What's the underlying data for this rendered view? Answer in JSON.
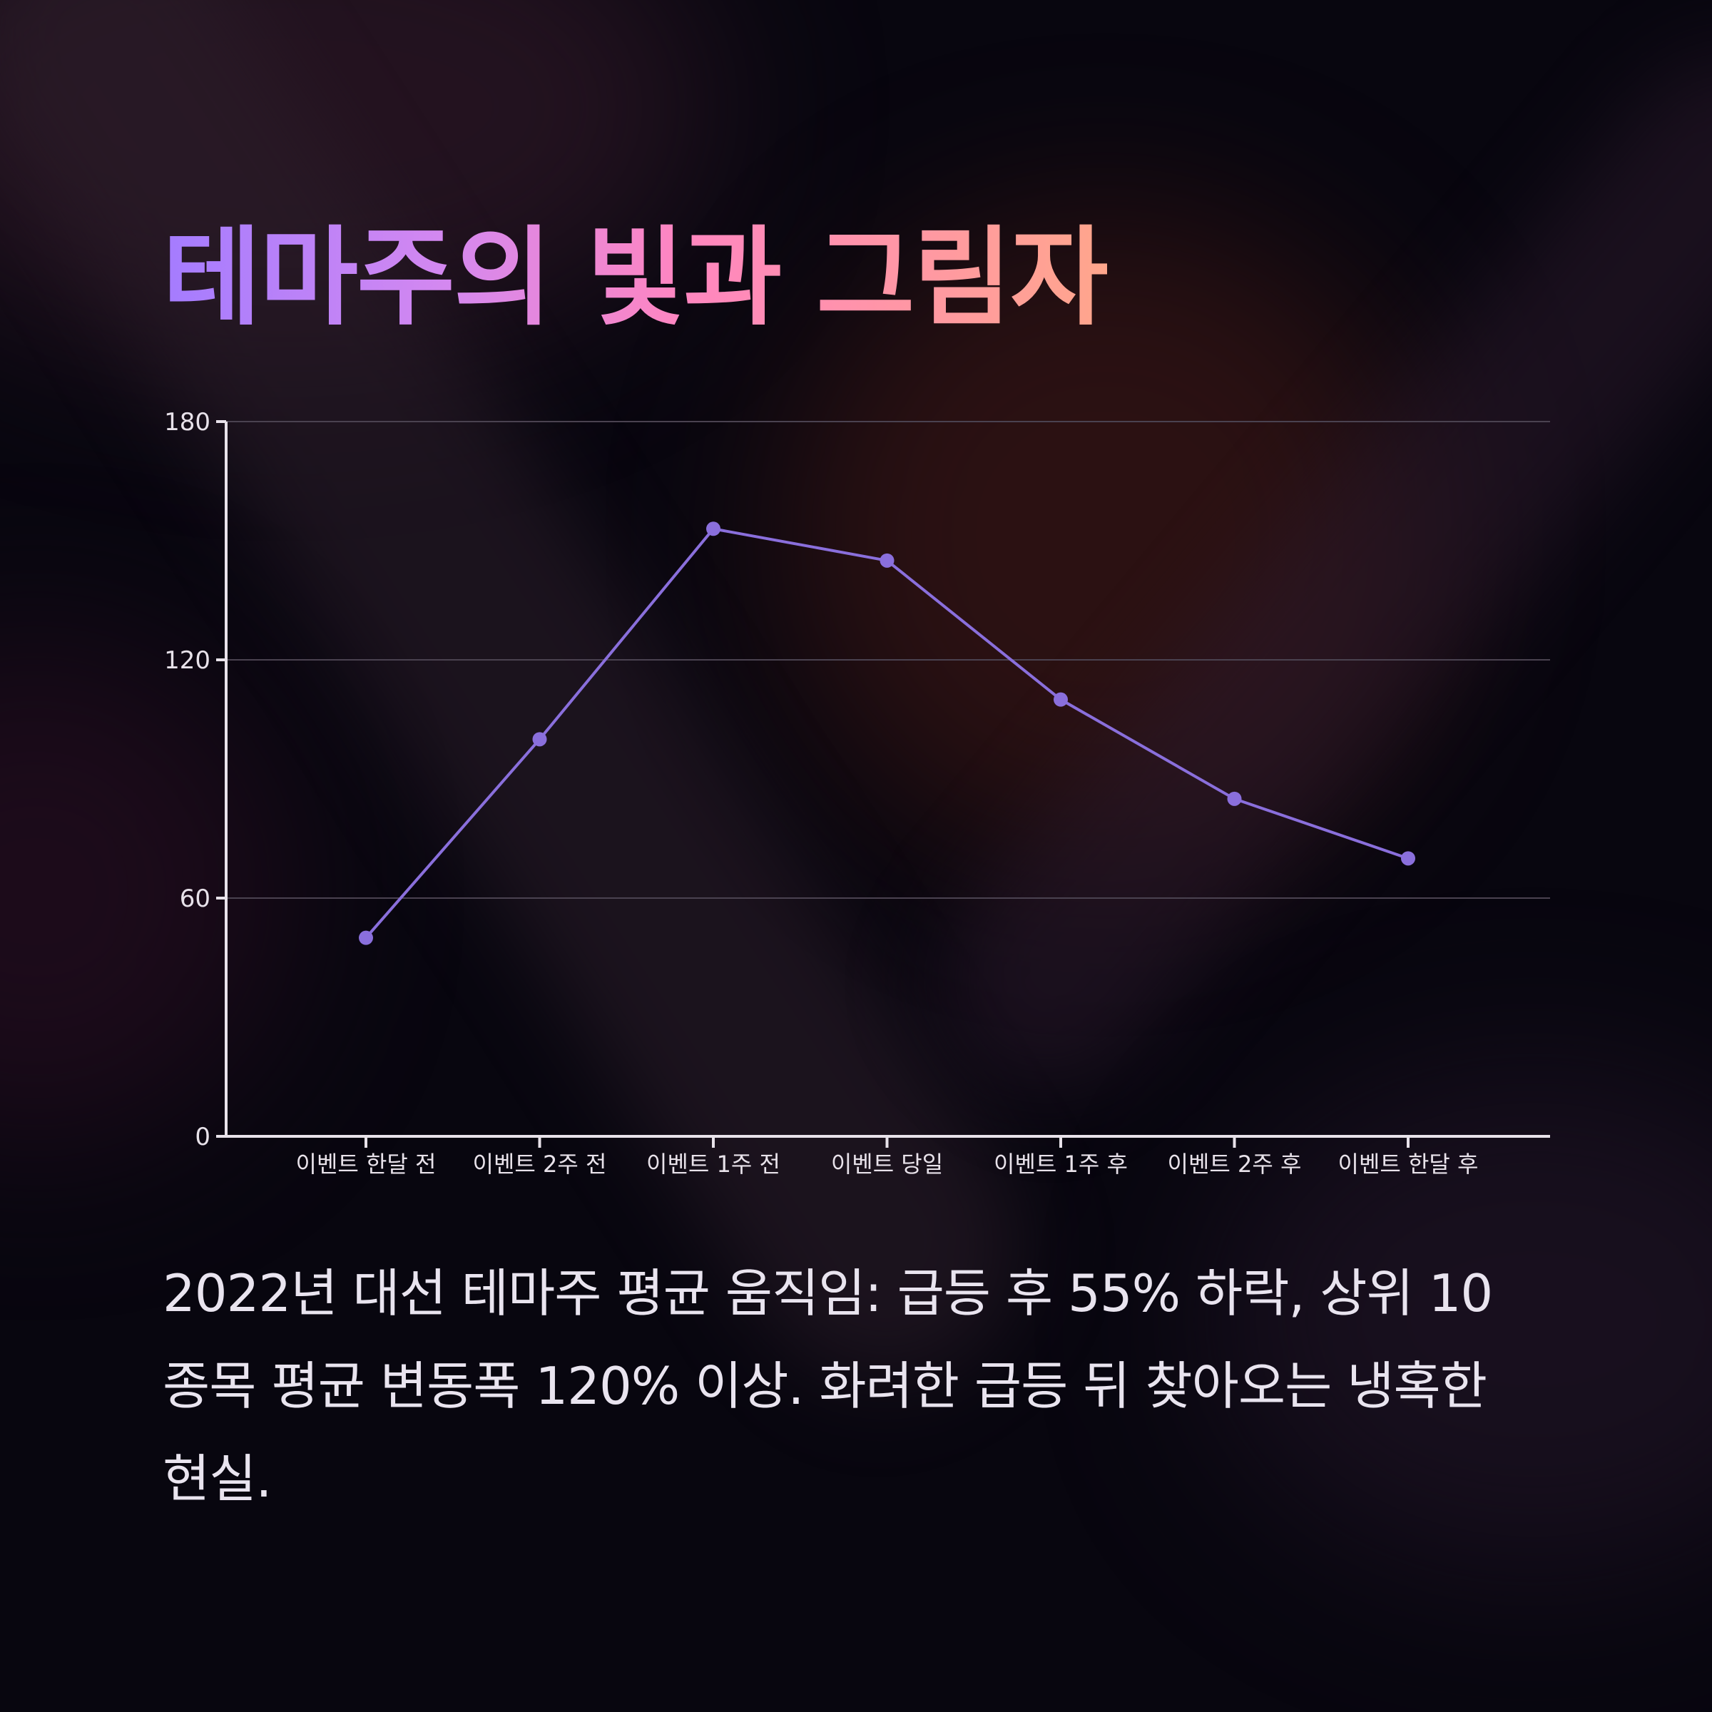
{
  "title": "테마주의 빛과 그림자",
  "description": "2022년 대선 테마주 평균 움직임: 급등 후 55% 하락, 상위 10 종목 평균 변동폭 120% 이상. 화려한 급등 뒤 찾아오는 냉혹한 현실.",
  "colors": {
    "line": "#8a6fdc",
    "axis": "#e8e2ea",
    "grid": "#4a4250",
    "tick_text": "#e8e2ea"
  },
  "chart_data": {
    "type": "line",
    "categories": [
      "이벤트 한달 전",
      "이벤트 2주 전",
      "이벤트 1주 전",
      "이벤트 당일",
      "이벤트 1주 후",
      "이벤트 2주 후",
      "이벤트 한달 후"
    ],
    "values": [
      50,
      100,
      153,
      145,
      110,
      85,
      70
    ],
    "ylim": [
      0,
      180
    ],
    "yticks": [
      "0",
      "60",
      "120",
      "180"
    ],
    "grid": true,
    "markers": true
  }
}
